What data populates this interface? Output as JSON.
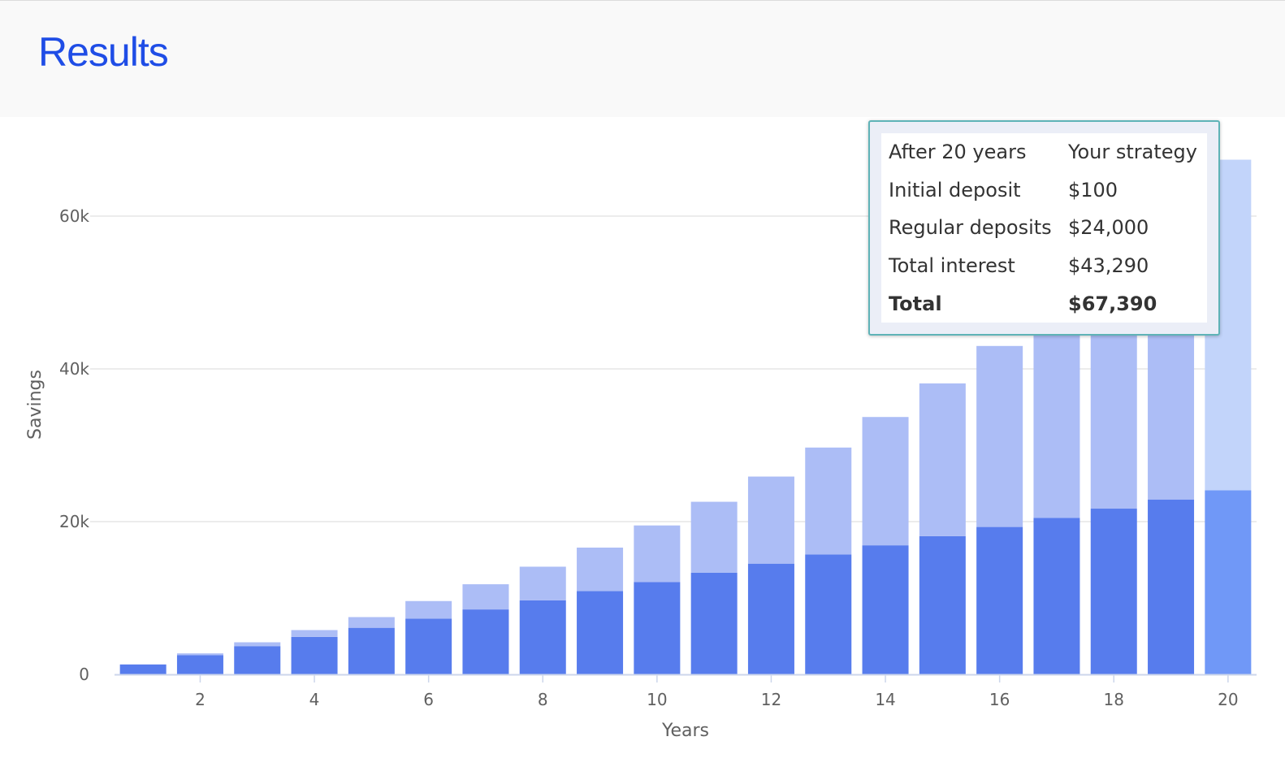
{
  "header": {
    "title": "Results"
  },
  "tooltip": {
    "rows": [
      {
        "label": "After 20 years",
        "value": "Your strategy"
      },
      {
        "label": "Initial deposit",
        "value": "$100"
      },
      {
        "label": "Regular deposits",
        "value": "$24,000"
      },
      {
        "label": "Total interest",
        "value": "$43,290"
      },
      {
        "label": "Total",
        "value": "$67,390"
      }
    ]
  },
  "chart_data": {
    "type": "bar",
    "stacked": true,
    "xlabel": "Years",
    "ylabel": "Savings",
    "ylim": [
      0,
      70000
    ],
    "yticks": [
      0,
      20000,
      40000,
      60000
    ],
    "ytick_labels": [
      "0",
      "20k",
      "40k",
      "60k"
    ],
    "xticks": [
      2,
      4,
      6,
      8,
      10,
      12,
      14,
      16,
      18,
      20
    ],
    "x": [
      1,
      2,
      3,
      4,
      5,
      6,
      7,
      8,
      9,
      10,
      11,
      12,
      13,
      14,
      15,
      16,
      17,
      18,
      19,
      20
    ],
    "grid": true,
    "highlighted_category": 20,
    "colors": {
      "deposits": "#577ced",
      "interest": "#acbdf6",
      "deposits_highlight": "#7098f7",
      "interest_highlight": "#c2d4fa"
    },
    "series": [
      {
        "values": [
          1300,
          2500,
          3700,
          4900,
          6100,
          7300,
          8500,
          9700,
          10900,
          12100,
          13300,
          14500,
          15700,
          16900,
          18100,
          19300,
          20500,
          21700,
          22900,
          24100
        ]
      },
      {
        "values": [
          0,
          250,
          500,
          900,
          1400,
          2300,
          3300,
          4400,
          5700,
          7400,
          9300,
          11400,
          14000,
          16800,
          20000,
          23700,
          27300,
          31300,
          35600,
          43290
        ]
      }
    ]
  }
}
